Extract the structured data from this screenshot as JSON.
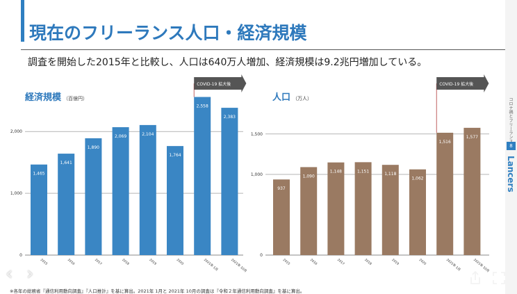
{
  "slide": {
    "title": "現在のフリーランス人口・経済規模",
    "subtitle": "調査を開始した2015年と比較し、人口は640万人増加、経済規模は9.2兆円増加している。",
    "footnote": "※各年の総務省『通信利用動向調査』『人口推計』を基に算出。2021年 1月と 2021年 10月の調査は『令和２年通信利用動向調査』を基に算出。",
    "page_number": "8",
    "side_caption": "コロナ禍とフリーランス",
    "brand": "Lancers"
  },
  "colors": {
    "accent": "#2f7fc1",
    "title": "#2e79bc",
    "economy_bar": "#3a86c4",
    "population_bar": "#9a7a62",
    "covid_marker": "#555555"
  },
  "icons": {
    "prev": "chevron-left-icon",
    "next": "chevron-right-icon",
    "share": "share-icon",
    "fullscreen": "fullscreen-icon"
  },
  "chart_data": [
    {
      "type": "bar",
      "title": "経済規模",
      "unit": "（百億円）",
      "categories": [
        "2015",
        "2016",
        "2017",
        "2018",
        "2019",
        "2020",
        "2021年 1月",
        "2021年 10月"
      ],
      "values": [
        1465,
        1641,
        1890,
        2069,
        2104,
        1764,
        2558,
        2383
      ],
      "value_labels": [
        "1,465",
        "1,641",
        "1,890",
        "2,069",
        "2,104",
        "1,764",
        "2,558",
        "2,383"
      ],
      "ylim": [
        0,
        2800
      ],
      "yticks": [
        0,
        1000,
        2000
      ],
      "ytick_labels": [
        "0",
        "1,000",
        "2,000"
      ],
      "annotation": "COVID-19 拡大後",
      "annotation_from_category": "2021年 1月"
    },
    {
      "type": "bar",
      "title": "人口",
      "unit": "（万人）",
      "categories": [
        "2015",
        "2016",
        "2017",
        "2018",
        "2019",
        "2020",
        "2021年 1月",
        "2021年 10月"
      ],
      "values": [
        937,
        1090,
        1148,
        1151,
        1118,
        1062,
        1516,
        1577
      ],
      "value_labels": [
        "937",
        "1,090",
        "1,148",
        "1,151",
        "1,118",
        "1,062",
        "1,516",
        "1,577"
      ],
      "ylim": [
        0,
        1800
      ],
      "yticks": [
        0,
        1000,
        1500
      ],
      "ytick_labels": [
        "0",
        "1,000",
        "1,500"
      ],
      "annotation": "COVID-19 拡大後",
      "annotation_from_category": "2021年 1月"
    }
  ]
}
